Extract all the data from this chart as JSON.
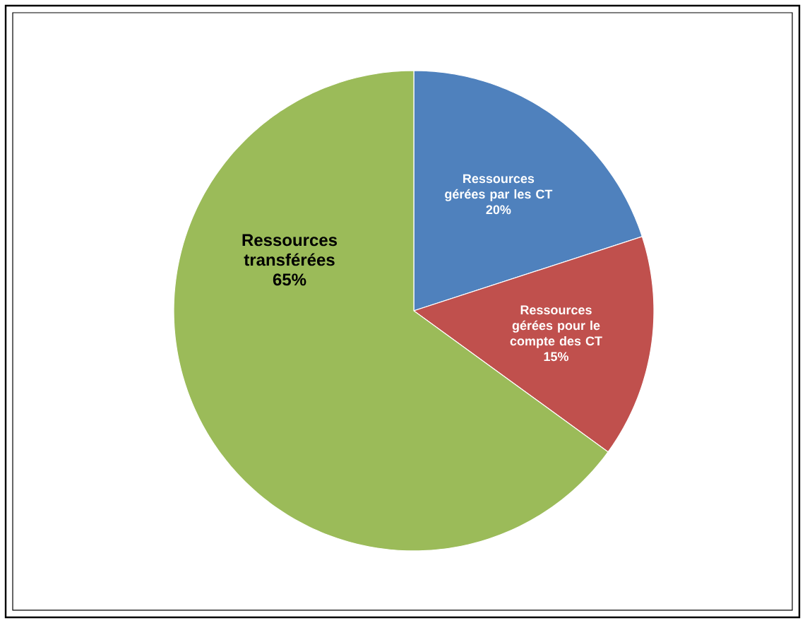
{
  "chart_data": {
    "type": "pie",
    "categories": [
      "Ressources gérées par les CT",
      "Ressources gérées pour le compte des CT",
      "Ressources transférées"
    ],
    "values": [
      20,
      15,
      65
    ],
    "colors": [
      "#4f81bd",
      "#c0504d",
      "#9bbb59"
    ],
    "value_labels": [
      "20%",
      "15%",
      "65%"
    ]
  }
}
